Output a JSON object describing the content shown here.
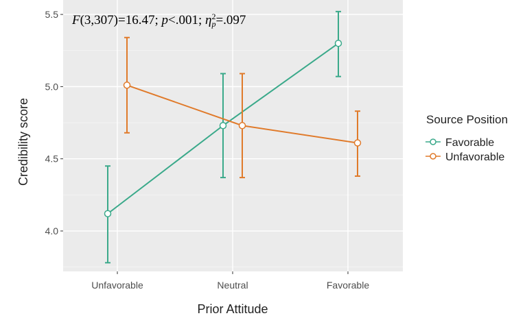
{
  "chart_data": {
    "type": "line",
    "xlabel": "Prior Attitude",
    "ylabel": "Credibility score",
    "categories": [
      "Unfavorable",
      "Neutral",
      "Favorable"
    ],
    "ylim": [
      3.72,
      5.6
    ],
    "yticks": [
      4.0,
      4.5,
      5.0,
      5.5
    ],
    "ytick_labels": [
      "4.0",
      "4.5",
      "5.0",
      "5.5"
    ],
    "grid": true,
    "legend_position": "right",
    "legend_title": "Source Position",
    "annotation": {
      "F_label": "F",
      "stat_text": "(3,307)=16.47; ",
      "p_label": "p",
      "p_text": "<.001; ",
      "eta_label": "η",
      "eta_sup": "2",
      "eta_sub": "p",
      "eta_text": "=.097"
    },
    "series": [
      {
        "name": "Favorable",
        "color": "#3aa98a",
        "values": [
          4.12,
          4.73,
          5.3
        ],
        "lower": [
          3.78,
          4.37,
          5.07
        ],
        "upper": [
          4.45,
          5.09,
          5.52
        ]
      },
      {
        "name": "Unfavorable",
        "color": "#e07a2a",
        "values": [
          5.01,
          4.73,
          4.61
        ],
        "lower": [
          4.68,
          4.37,
          4.38
        ],
        "upper": [
          5.34,
          5.09,
          4.83
        ]
      }
    ]
  }
}
